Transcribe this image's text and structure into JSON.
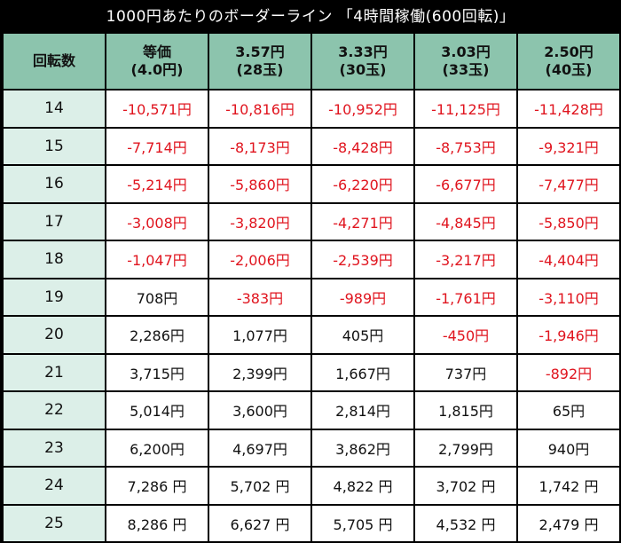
{
  "title": "1000円あたりのボーダーライン 「4時間稼働(600回転)」",
  "colors": {
    "header_bg": "#8cc4ad",
    "first_col_bg": "#dcefe8",
    "negative_text": "#e0141e",
    "positive_text": "#111111",
    "border": "#000000"
  },
  "headers": [
    {
      "line1": "回転数",
      "line2": ""
    },
    {
      "line1": "等価",
      "line2": "(4.0円)"
    },
    {
      "line1": "3.57円",
      "line2": "(28玉)"
    },
    {
      "line1": "3.33円",
      "line2": "(30玉)"
    },
    {
      "line1": "3.03円",
      "line2": "(33玉)"
    },
    {
      "line1": "2.50円",
      "line2": "(40玉)"
    }
  ],
  "rows": [
    {
      "spins": "14",
      "values": [
        "-10,571円",
        "-10,816円",
        "-10,952円",
        "-11,125円",
        "-11,428円"
      ]
    },
    {
      "spins": "15",
      "values": [
        "-7,714円",
        "-8,173円",
        "-8,428円",
        "-8,753円",
        "-9,321円"
      ]
    },
    {
      "spins": "16",
      "values": [
        "-5,214円",
        "-5,860円",
        "-6,220円",
        "-6,677円",
        "-7,477円"
      ]
    },
    {
      "spins": "17",
      "values": [
        "-3,008円",
        "-3,820円",
        "-4,271円",
        "-4,845円",
        "-5,850円"
      ]
    },
    {
      "spins": "18",
      "values": [
        "-1,047円",
        "-2,006円",
        "-2,539円",
        "-3,217円",
        "-4,404円"
      ]
    },
    {
      "spins": "19",
      "values": [
        "708円",
        "-383円",
        "-989円",
        "-1,761円",
        "-3,110円"
      ]
    },
    {
      "spins": "20",
      "values": [
        "2,286円",
        "1,077円",
        "405円",
        "-450円",
        "-1,946円"
      ]
    },
    {
      "spins": "21",
      "values": [
        "3,715円",
        "2,399円",
        "1,667円",
        "737円",
        "-892円"
      ]
    },
    {
      "spins": "22",
      "values": [
        "5,014円",
        "3,600円",
        "2,814円",
        "1,815円",
        "65円"
      ]
    },
    {
      "spins": "23",
      "values": [
        "6,200円",
        "4,697円",
        "3,862円",
        "2,799円",
        "940円"
      ]
    },
    {
      "spins": "24",
      "values": [
        "7,286 円",
        "5,702 円",
        "4,822 円",
        "3,702 円",
        "1,742 円"
      ]
    },
    {
      "spins": "25",
      "values": [
        "8,286 円",
        "6,627 円",
        "5,705 円",
        "4,532 円",
        "2,479 円"
      ]
    }
  ]
}
